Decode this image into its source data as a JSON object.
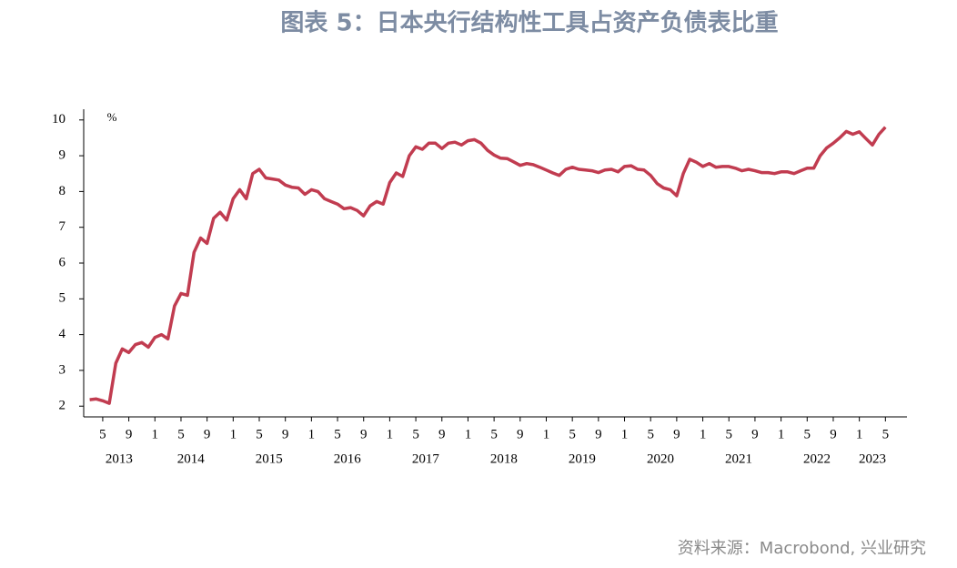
{
  "chart_data": {
    "type": "line",
    "title": "图表 5：日本央行结构性工具占资产负债表比重",
    "source": "资料来源：Macrobond, 兴业研究",
    "y_unit": "%",
    "categories": [
      null,
      null,
      "5",
      null,
      null,
      null,
      "9",
      null,
      null,
      null,
      "1",
      null,
      null,
      null,
      "5",
      null,
      null,
      null,
      "9",
      null,
      null,
      null,
      "1",
      null,
      null,
      null,
      "5",
      null,
      null,
      null,
      "9",
      null,
      null,
      null,
      "1",
      null,
      null,
      null,
      "5",
      null,
      null,
      null,
      "9",
      null,
      null,
      null,
      "1",
      null,
      null,
      null,
      "5",
      null,
      null,
      null,
      "9",
      null,
      null,
      null,
      "1",
      null,
      null,
      null,
      "5",
      null,
      null,
      null,
      "9",
      null,
      null,
      null,
      "1",
      null,
      null,
      null,
      "5",
      null,
      null,
      null,
      "9",
      null,
      null,
      null,
      "1",
      null,
      null,
      null,
      "5",
      null,
      null,
      null,
      "9",
      null,
      null,
      null,
      "1",
      null,
      null,
      null,
      "5",
      null,
      null,
      null,
      "9",
      null,
      null,
      null,
      "1",
      null,
      null,
      null,
      "5",
      null,
      null,
      null,
      "9",
      null,
      null,
      null,
      "1",
      null,
      null,
      null,
      "5"
    ],
    "years": [
      "2013",
      "2014",
      "2015",
      "2016",
      "2017",
      "2018",
      "2019",
      "2020",
      "2021",
      "2022",
      "2023"
    ],
    "series": [
      {
        "color": "#c13c50",
        "values": [
          2.18,
          2.2,
          2.15,
          2.08,
          3.2,
          3.6,
          3.5,
          3.72,
          3.78,
          3.65,
          3.92,
          4.0,
          3.88,
          4.8,
          5.15,
          5.1,
          6.3,
          6.7,
          6.55,
          7.25,
          7.42,
          7.2,
          7.8,
          8.05,
          7.8,
          8.5,
          8.62,
          8.38,
          8.35,
          8.32,
          8.18,
          8.12,
          8.1,
          7.92,
          8.05,
          8.0,
          7.8,
          7.72,
          7.65,
          7.52,
          7.55,
          7.47,
          7.32,
          7.6,
          7.72,
          7.65,
          8.25,
          8.52,
          8.42,
          9.0,
          9.25,
          9.18,
          9.35,
          9.35,
          9.2,
          9.35,
          9.38,
          9.3,
          9.42,
          9.45,
          9.35,
          9.15,
          9.02,
          8.93,
          8.92,
          8.83,
          8.73,
          8.78,
          8.75,
          8.68,
          8.6,
          8.52,
          8.45,
          8.62,
          8.68,
          8.62,
          8.6,
          8.58,
          8.53,
          8.6,
          8.62,
          8.55,
          8.7,
          8.72,
          8.62,
          8.6,
          8.45,
          8.22,
          8.1,
          8.05,
          7.88,
          8.5,
          8.9,
          8.82,
          8.7,
          8.78,
          8.68,
          8.7,
          8.7,
          8.65,
          8.58,
          8.62,
          8.58,
          8.53,
          8.53,
          8.5,
          8.55,
          8.55,
          8.5,
          8.58,
          8.65,
          8.65,
          9.0,
          9.22,
          9.35,
          9.5,
          9.68,
          9.6,
          9.67,
          9.48,
          9.3,
          9.6,
          9.8
        ]
      }
    ],
    "ylim": [
      1.7,
      10.3
    ],
    "yticks": [
      2,
      3,
      4,
      5,
      6,
      7,
      8,
      9,
      10
    ]
  }
}
